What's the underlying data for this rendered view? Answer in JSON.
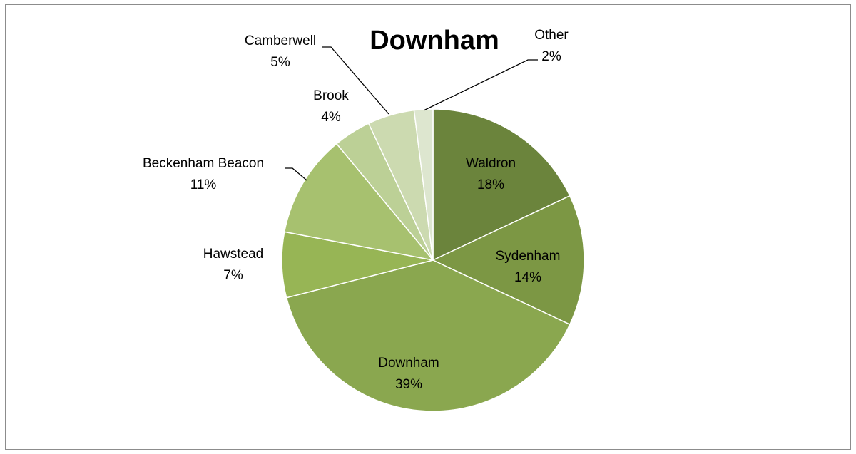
{
  "chart_data": {
    "type": "pie",
    "title": "Downham",
    "legend": "none",
    "slices": [
      {
        "label": "Waldron",
        "value": 18,
        "value_label": "18%",
        "color": "#6b843c"
      },
      {
        "label": "Sydenham",
        "value": 14,
        "value_label": "14%",
        "color": "#7c9744"
      },
      {
        "label": "Downham",
        "value": 39,
        "value_label": "39%",
        "color": "#8aa74f"
      },
      {
        "label": "Hawstead",
        "value": 7,
        "value_label": "7%",
        "color": "#97b555"
      },
      {
        "label": "Beckenham Beacon",
        "value": 11,
        "value_label": "11%",
        "color": "#a7c16f"
      },
      {
        "label": "Brook",
        "value": 4,
        "value_label": "4%",
        "color": "#bcd096"
      },
      {
        "label": "Camberwell",
        "value": 5,
        "value_label": "5%",
        "color": "#ccdab0"
      },
      {
        "label": "Other",
        "value": 2,
        "value_label": "2%",
        "color": "#dde6cf"
      }
    ]
  }
}
